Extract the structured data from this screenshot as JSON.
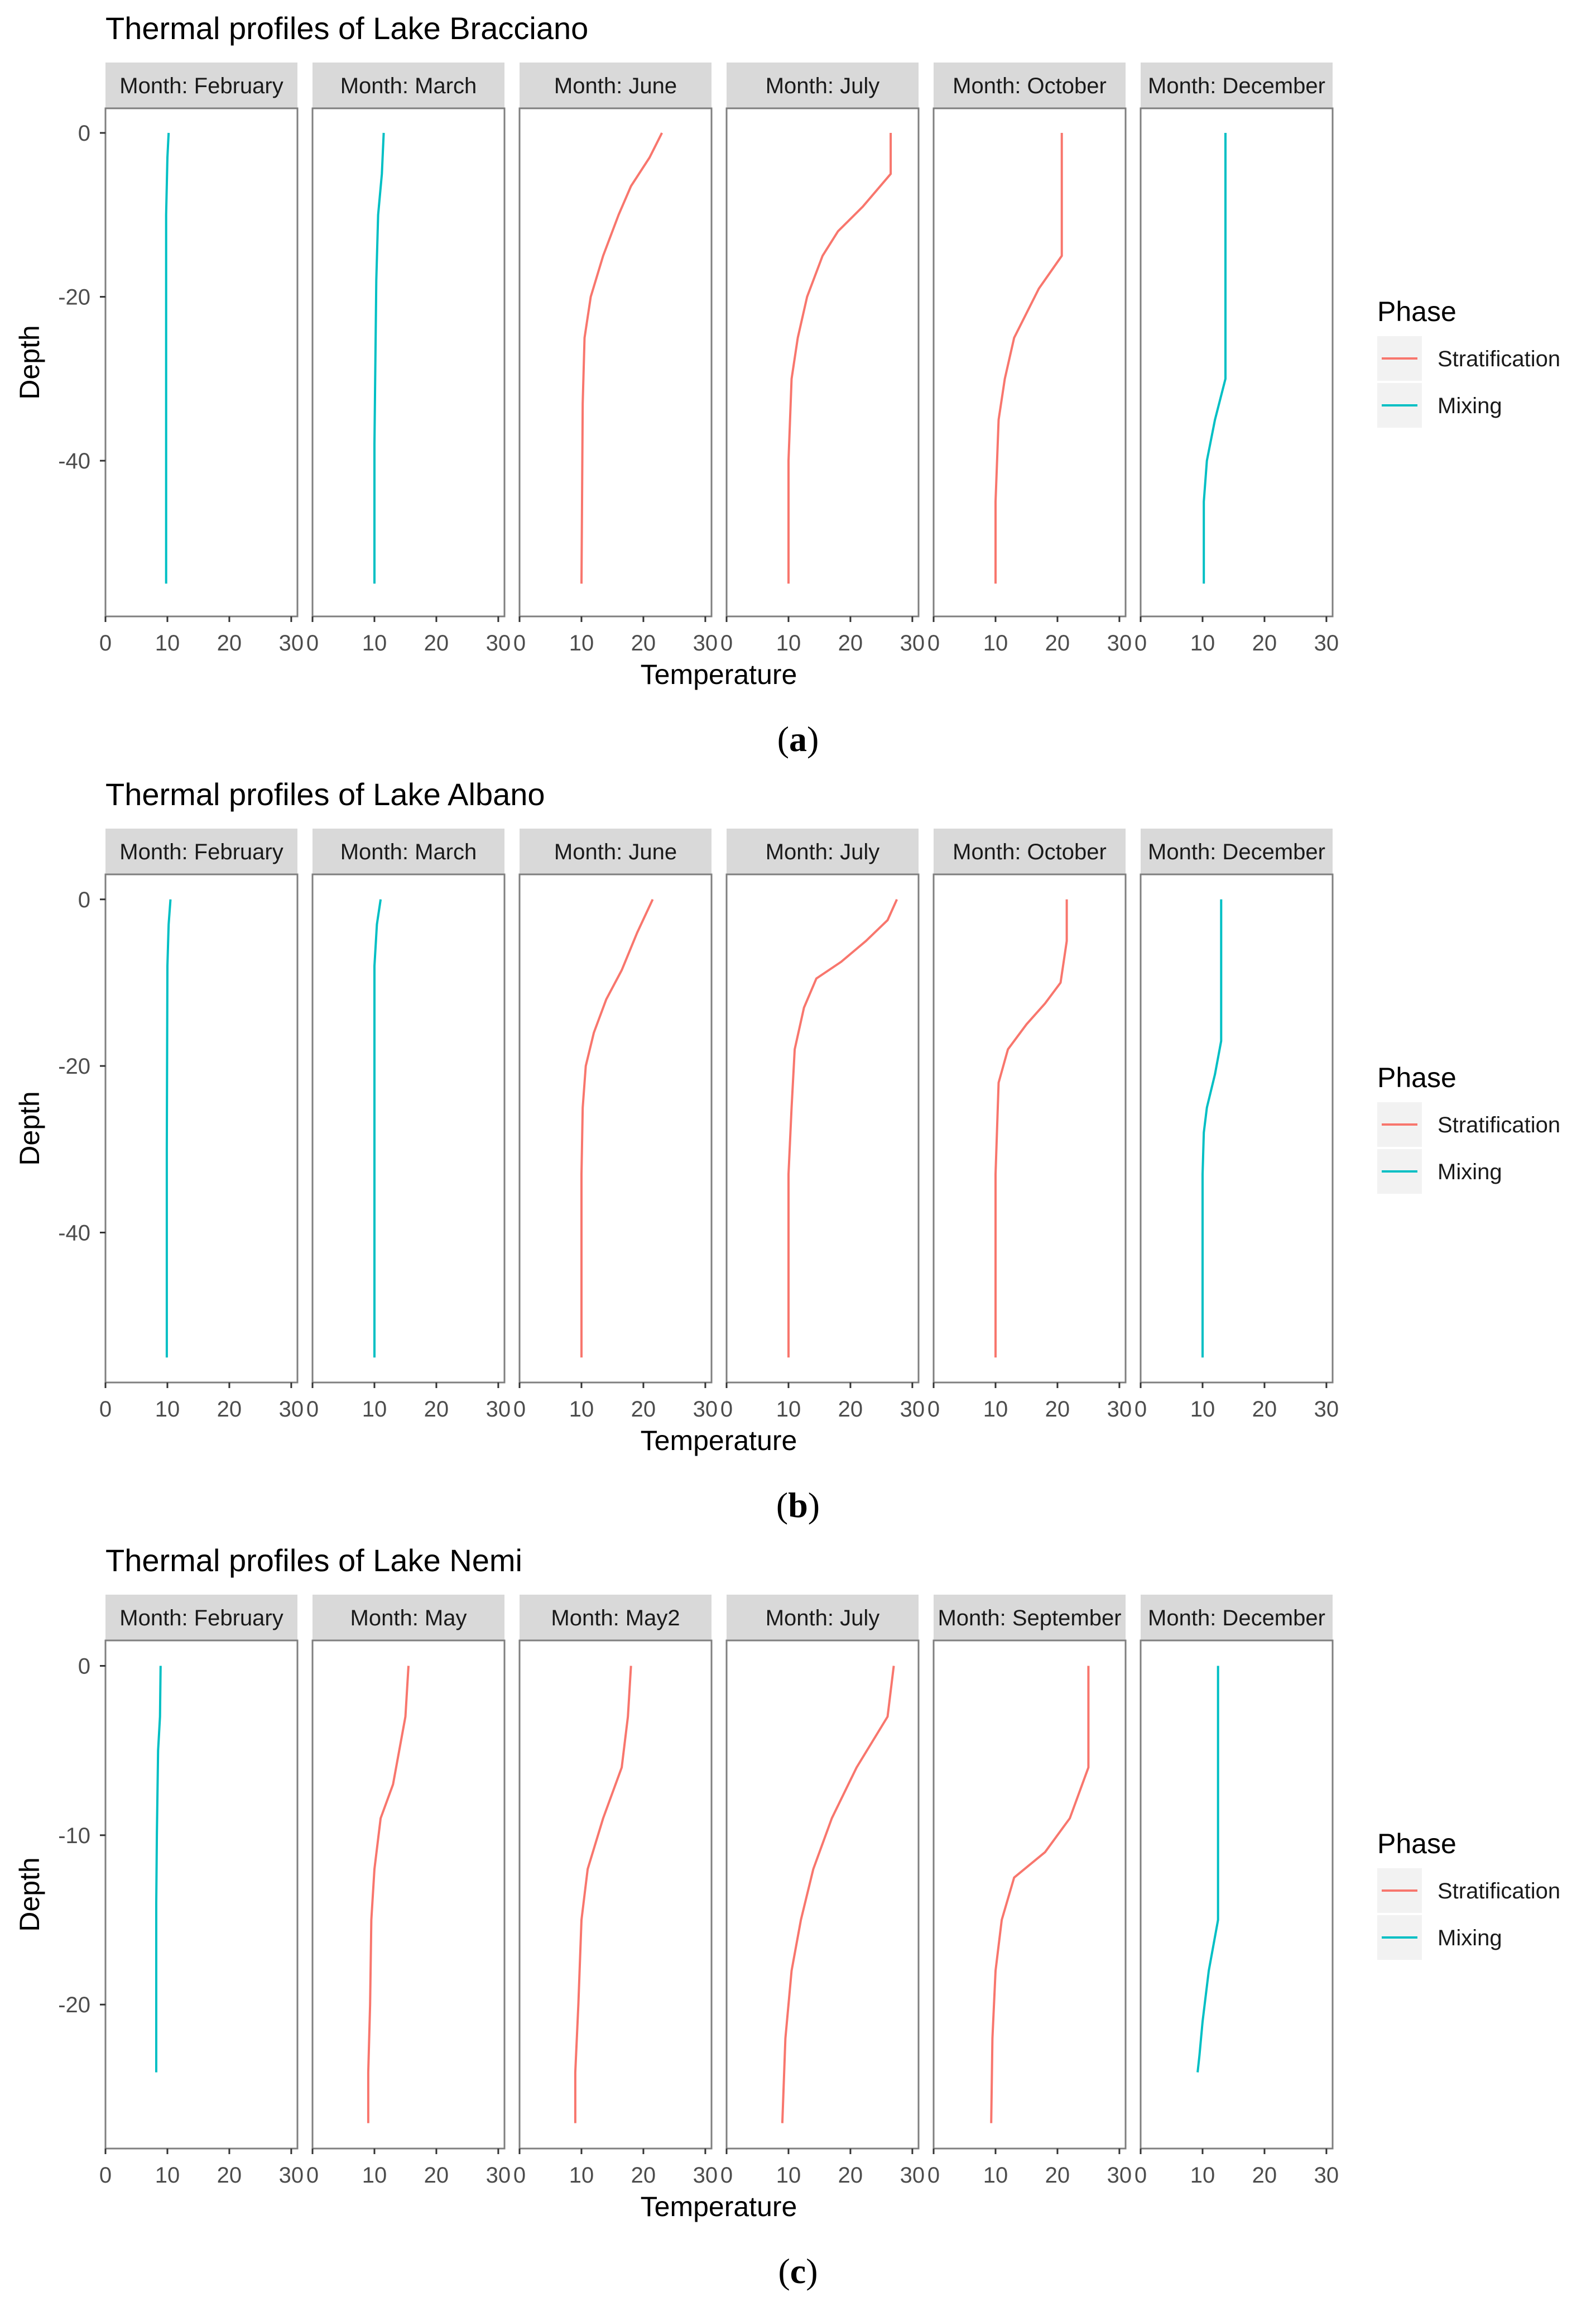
{
  "colors": {
    "Stratification": "#F8766D",
    "Mixing": "#00BFC4",
    "strip_background": "#D9D9D9",
    "panel_border": "#7F7F7F",
    "tick": "#333333"
  },
  "chart_data": [
    {
      "type": "line",
      "title": "Thermal profiles of Lake Bracciano",
      "caption": "a",
      "xlabel": "Temperature",
      "ylabel": "Depth",
      "xlim": [
        0,
        31
      ],
      "ylim": [
        -59,
        3
      ],
      "xticks": [
        0,
        10,
        20,
        30
      ],
      "yticks": [
        0,
        -20,
        -40
      ],
      "legend": {
        "title": "Phase",
        "entries": [
          "Stratification",
          "Mixing"
        ],
        "position": "right"
      },
      "grid": false,
      "panels": [
        {
          "label": "Month: February",
          "phase": "Mixing",
          "temperature": [
            10.2,
            10.0,
            9.8,
            9.8,
            9.8
          ],
          "depth": [
            0,
            -3,
            -10,
            -30,
            -55
          ]
        },
        {
          "label": "Month: March",
          "phase": "Mixing",
          "temperature": [
            11.5,
            11.2,
            10.6,
            10.3,
            10.0,
            10.0
          ],
          "depth": [
            0,
            -5,
            -10,
            -18,
            -38,
            -55
          ]
        },
        {
          "label": "Month: June",
          "phase": "Stratification",
          "temperature": [
            23.0,
            21.0,
            18.0,
            16.0,
            13.5,
            11.5,
            10.5,
            10.2,
            10.0
          ],
          "depth": [
            0,
            -3,
            -6.5,
            -10,
            -15,
            -20,
            -25,
            -33,
            -55
          ]
        },
        {
          "label": "Month: July",
          "phase": "Stratification",
          "temperature": [
            26.5,
            26.5,
            22.0,
            18.0,
            15.5,
            13.0,
            11.5,
            10.5,
            10.0,
            10.0
          ],
          "depth": [
            0,
            -5,
            -9,
            -12,
            -15,
            -20,
            -25,
            -30,
            -40,
            -55
          ]
        },
        {
          "label": "Month: October",
          "phase": "Stratification",
          "temperature": [
            20.7,
            20.7,
            20.7,
            17.0,
            13.0,
            11.5,
            10.5,
            10.0,
            10.0
          ],
          "depth": [
            0,
            -5,
            -15,
            -19,
            -25,
            -30,
            -35,
            -45,
            -55
          ]
        },
        {
          "label": "Month: December",
          "phase": "Mixing",
          "temperature": [
            13.7,
            13.7,
            13.7,
            12.0,
            10.7,
            10.2,
            10.2
          ],
          "depth": [
            0,
            -15,
            -30,
            -35,
            -40,
            -45,
            -55
          ]
        }
      ]
    },
    {
      "type": "line",
      "title": "Thermal profiles of Lake Albano",
      "caption": "b",
      "xlabel": "Temperature",
      "ylabel": "Depth",
      "xlim": [
        0,
        31
      ],
      "ylim": [
        -58,
        3
      ],
      "xticks": [
        0,
        10,
        20,
        30
      ],
      "yticks": [
        0,
        -20,
        -40
      ],
      "legend": {
        "title": "Phase",
        "entries": [
          "Stratification",
          "Mixing"
        ],
        "position": "right"
      },
      "grid": false,
      "panels": [
        {
          "label": "Month: February",
          "phase": "Mixing",
          "temperature": [
            10.5,
            10.2,
            10.0,
            9.9,
            9.9
          ],
          "depth": [
            0,
            -3,
            -8,
            -30,
            -55
          ]
        },
        {
          "label": "Month: March",
          "phase": "Mixing",
          "temperature": [
            11.0,
            10.4,
            10.0,
            10.0,
            10.0
          ],
          "depth": [
            0,
            -3,
            -8,
            -30,
            -55
          ]
        },
        {
          "label": "Month: June",
          "phase": "Stratification",
          "temperature": [
            21.5,
            19.0,
            16.5,
            14.0,
            12.0,
            10.7,
            10.2,
            10.0,
            10.0
          ],
          "depth": [
            0,
            -4,
            -8.5,
            -12,
            -16,
            -20,
            -25,
            -33,
            -55
          ]
        },
        {
          "label": "Month: July",
          "phase": "Stratification",
          "temperature": [
            27.5,
            26.0,
            22.5,
            18.5,
            14.5,
            12.5,
            11.0,
            10.5,
            10.0,
            10.0
          ],
          "depth": [
            0,
            -2.5,
            -5,
            -7.5,
            -9.5,
            -13,
            -18,
            -25,
            -33,
            -55
          ]
        },
        {
          "label": "Month: October",
          "phase": "Stratification",
          "temperature": [
            21.5,
            21.5,
            20.5,
            18.0,
            15.0,
            12.0,
            10.5,
            10.0,
            10.0
          ],
          "depth": [
            0,
            -5,
            -10,
            -12.5,
            -15,
            -18,
            -22,
            -33,
            -55
          ]
        },
        {
          "label": "Month: December",
          "phase": "Mixing",
          "temperature": [
            13.0,
            13.0,
            13.0,
            12.0,
            10.7,
            10.2,
            10.0,
            10.0
          ],
          "depth": [
            0,
            -10,
            -17,
            -21,
            -25,
            -28,
            -33,
            -55
          ]
        }
      ]
    },
    {
      "type": "line",
      "title": "Thermal profiles of Lake Nemi",
      "caption": "c",
      "xlabel": "Temperature",
      "ylabel": "Depth",
      "xlim": [
        0,
        31
      ],
      "ylim": [
        -28.5,
        1.5
      ],
      "xticks": [
        0,
        10,
        20,
        30
      ],
      "yticks": [
        0,
        -10,
        -20
      ],
      "legend": {
        "title": "Phase",
        "entries": [
          "Stratification",
          "Mixing"
        ],
        "position": "right"
      },
      "grid": false,
      "panels": [
        {
          "label": "Month: February",
          "phase": "Mixing",
          "temperature": [
            8.9,
            8.8,
            8.5,
            8.3,
            8.2,
            8.2,
            8.2
          ],
          "depth": [
            0,
            -3,
            -5,
            -10,
            -14,
            -20,
            -24
          ]
        },
        {
          "label": "Month: May",
          "phase": "Stratification",
          "temperature": [
            15.5,
            15.0,
            13.0,
            11.0,
            10.0,
            9.5,
            9.3,
            9.0,
            9.0
          ],
          "depth": [
            0,
            -3,
            -7,
            -9,
            -12,
            -15,
            -20,
            -24,
            -27
          ]
        },
        {
          "label": "Month: May2",
          "phase": "Stratification",
          "temperature": [
            18.0,
            17.5,
            16.5,
            13.5,
            11.0,
            10.0,
            9.5,
            9.0,
            9.0
          ],
          "depth": [
            0,
            -3,
            -6,
            -9,
            -12,
            -15,
            -20,
            -24,
            -27
          ]
        },
        {
          "label": "Month: July",
          "phase": "Stratification",
          "temperature": [
            27.0,
            26.0,
            21.0,
            17.0,
            14.0,
            12.0,
            10.5,
            9.5,
            9.0
          ],
          "depth": [
            0,
            -3,
            -6,
            -9,
            -12,
            -15,
            -18,
            -22,
            -27
          ]
        },
        {
          "label": "Month: September",
          "phase": "Stratification",
          "temperature": [
            25.0,
            25.0,
            25.0,
            22.0,
            18.0,
            13.0,
            11.0,
            10.0,
            9.5,
            9.3
          ],
          "depth": [
            0,
            -3,
            -6,
            -9,
            -11,
            -12.5,
            -15,
            -18,
            -22,
            -27
          ]
        },
        {
          "label": "Month: December",
          "phase": "Mixing",
          "temperature": [
            12.5,
            12.5,
            12.5,
            12.5,
            11.0,
            10.0,
            9.5,
            9.2
          ],
          "depth": [
            0,
            -5,
            -10,
            -15,
            -18,
            -21,
            -23,
            -24
          ]
        }
      ]
    }
  ]
}
